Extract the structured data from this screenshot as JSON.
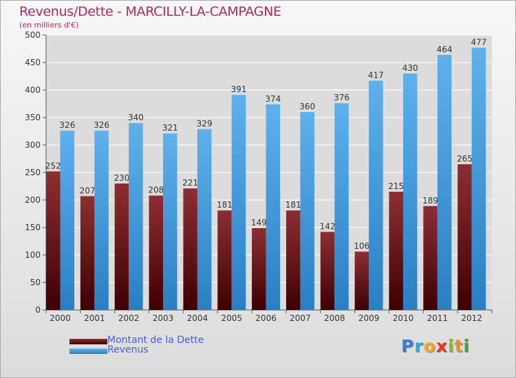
{
  "chart_data": {
    "type": "bar",
    "title": "Revenus/Dette - MARCILLY-LA-CAMPAGNE",
    "subtitle": "(en milliers d'€)",
    "categories": [
      "2000",
      "2001",
      "2002",
      "2003",
      "2004",
      "2005",
      "2006",
      "2007",
      "2008",
      "2009",
      "2010",
      "2011",
      "2012"
    ],
    "series": [
      {
        "name": "Montant de la Dette",
        "color": "#6b0f12",
        "values": [
          252,
          207,
          230,
          208,
          221,
          181,
          149,
          181,
          142,
          106,
          215,
          189,
          265
        ]
      },
      {
        "name": "Revenus",
        "color": "#4aa3e6",
        "values": [
          326,
          326,
          340,
          321,
          329,
          391,
          374,
          360,
          376,
          417,
          430,
          464,
          477
        ]
      }
    ],
    "ylim": [
      0,
      500
    ],
    "yticks": [
      0,
      50,
      100,
      150,
      200,
      250,
      300,
      350,
      400,
      450,
      500
    ],
    "grid": true,
    "legend_position": "bottom-left"
  },
  "branding": {
    "letters": [
      {
        "ch": "P",
        "color": "#3a7fd6"
      },
      {
        "ch": "r",
        "color": "#2fa8d8"
      },
      {
        "ch": "o",
        "color": "#f5a623"
      },
      {
        "ch": "x",
        "color": "#e8312a"
      },
      {
        "ch": "i",
        "color": "#7cbf2a"
      },
      {
        "ch": "t",
        "color": "#f08d1f"
      },
      {
        "ch": "i",
        "color": "#3aa848"
      }
    ]
  }
}
